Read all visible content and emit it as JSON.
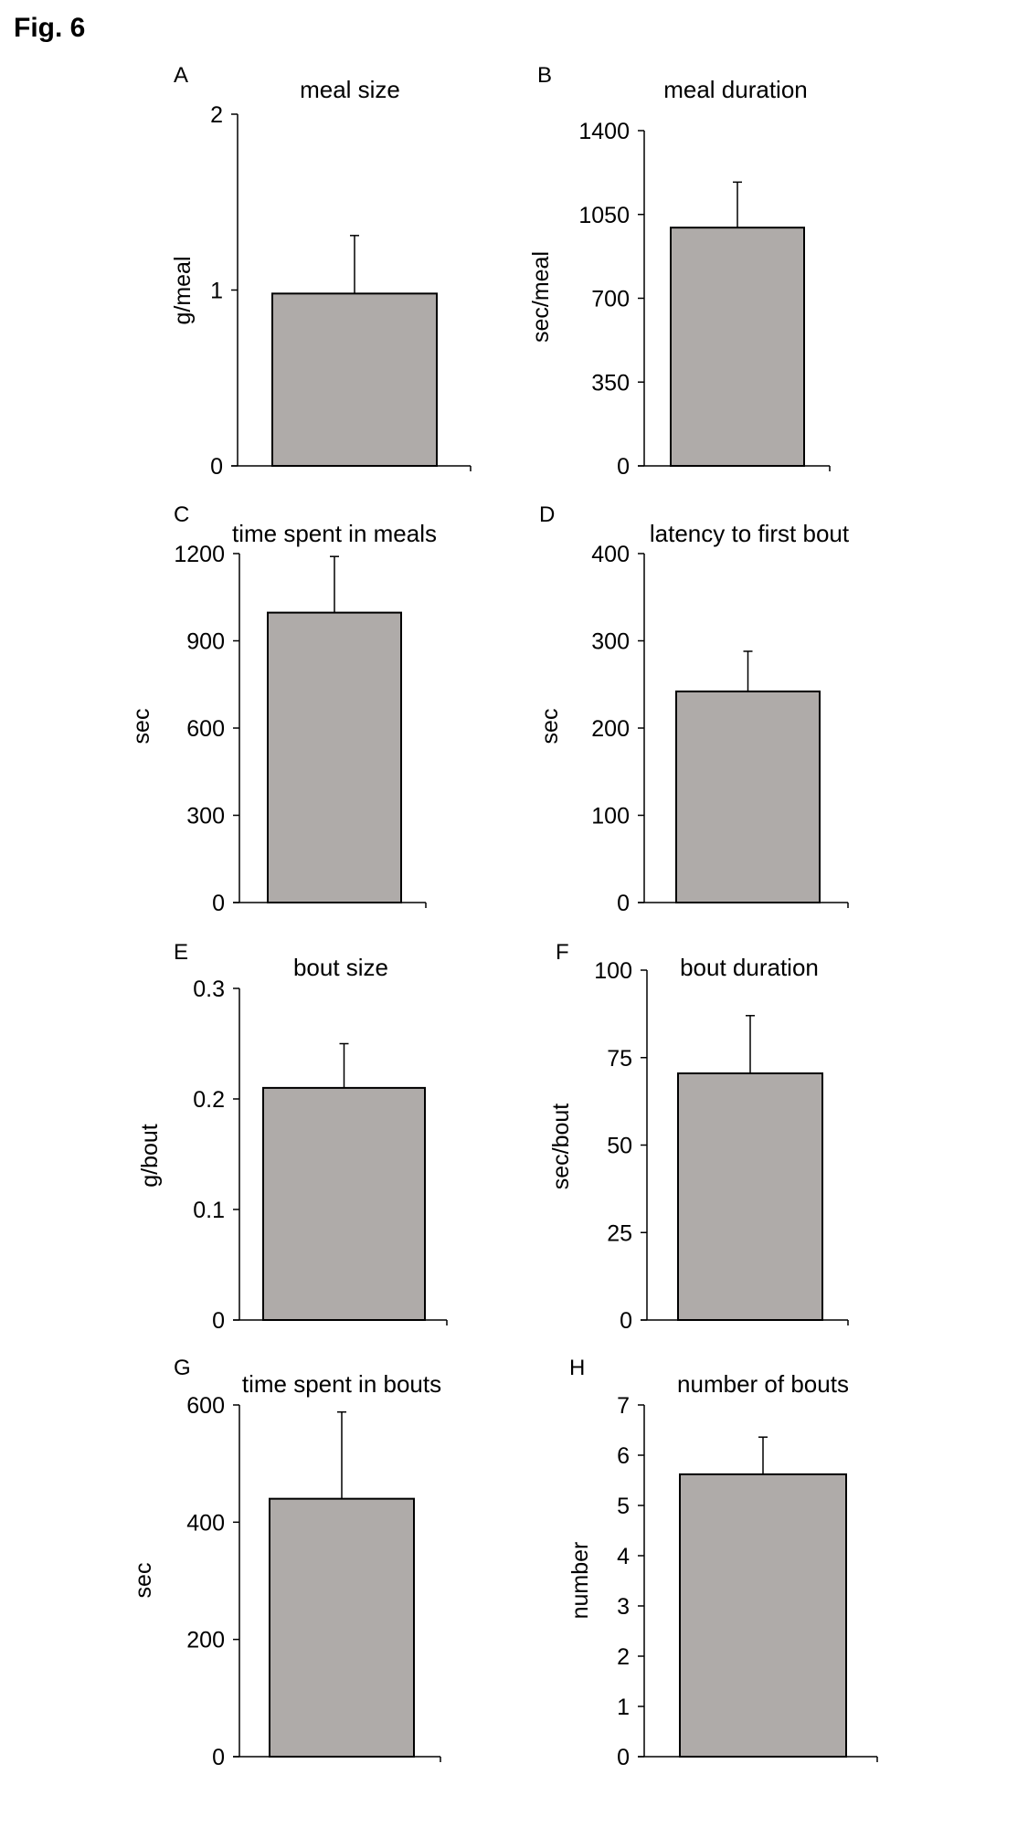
{
  "figure_label": "Fig. 6",
  "colors": {
    "bar_fill": "#afaba9",
    "bar_stroke": "#000000",
    "axis": "#000000"
  },
  "chart_data": [
    {
      "panel": "A",
      "type": "bar",
      "title": "meal size",
      "ylabel": "g/meal",
      "ylim": [
        0,
        2
      ],
      "yticks": [
        "0",
        "1",
        "2"
      ],
      "yticks_values": [
        0,
        1,
        2
      ],
      "series": [
        {
          "values": [
            0.98
          ],
          "error": [
            0.33
          ]
        }
      ]
    },
    {
      "panel": "B",
      "type": "bar",
      "title": "meal duration",
      "ylabel": "sec/meal",
      "ylim": [
        0,
        1400
      ],
      "yticks": [
        "0",
        "350",
        "700",
        "1050",
        "1400"
      ],
      "yticks_values": [
        0,
        350,
        700,
        1050,
        1400
      ],
      "series": [
        {
          "values": [
            995
          ],
          "error": [
            190
          ]
        }
      ]
    },
    {
      "panel": "C",
      "type": "bar",
      "title": "time spent in meals",
      "ylabel": "sec",
      "ylim": [
        0,
        1200
      ],
      "yticks": [
        "0",
        "300",
        "600",
        "900",
        "1200"
      ],
      "yticks_values": [
        0,
        300,
        600,
        900,
        1200
      ],
      "series": [
        {
          "values": [
            997
          ],
          "error": [
            193
          ]
        }
      ]
    },
    {
      "panel": "D",
      "type": "bar",
      "title": "latency to first bout",
      "ylabel": "sec",
      "ylim": [
        0,
        400
      ],
      "yticks": [
        "0",
        "100",
        "200",
        "300",
        "400"
      ],
      "yticks_values": [
        0,
        100,
        200,
        300,
        400
      ],
      "series": [
        {
          "values": [
            242
          ],
          "error": [
            46
          ]
        }
      ]
    },
    {
      "panel": "E",
      "type": "bar",
      "title": "bout size",
      "ylabel": "g/bout",
      "ylim": [
        0,
        0.3
      ],
      "yticks": [
        "0",
        "0.1",
        "0.2",
        "0.3"
      ],
      "yticks_values": [
        0,
        0.1,
        0.2,
        0.3
      ],
      "series": [
        {
          "values": [
            0.21
          ],
          "error": [
            0.04
          ]
        }
      ]
    },
    {
      "panel": "F",
      "type": "bar",
      "title": "bout duration",
      "ylabel": "sec/bout",
      "ylim": [
        0,
        100
      ],
      "yticks": [
        "0",
        "25",
        "50",
        "75",
        "100"
      ],
      "yticks_values": [
        0,
        25,
        50,
        75,
        100
      ],
      "series": [
        {
          "values": [
            70.5
          ],
          "error": [
            16.5
          ]
        }
      ]
    },
    {
      "panel": "G",
      "type": "bar",
      "title": "time spent in bouts",
      "ylabel": "sec",
      "ylim": [
        0,
        600
      ],
      "yticks": [
        "0",
        "200",
        "400",
        "600"
      ],
      "yticks_values": [
        0,
        200,
        400,
        600
      ],
      "series": [
        {
          "values": [
            440
          ],
          "error": [
            148
          ]
        }
      ]
    },
    {
      "panel": "H",
      "type": "bar",
      "title": "number of bouts",
      "ylabel": "number",
      "ylim": [
        0,
        7
      ],
      "yticks": [
        "0",
        "1",
        "2",
        "3",
        "4",
        "5",
        "6",
        "7"
      ],
      "yticks_values": [
        0,
        1,
        2,
        3,
        4,
        5,
        6,
        7
      ],
      "series": [
        {
          "values": [
            5.62
          ],
          "error": [
            0.74
          ]
        }
      ]
    }
  ]
}
